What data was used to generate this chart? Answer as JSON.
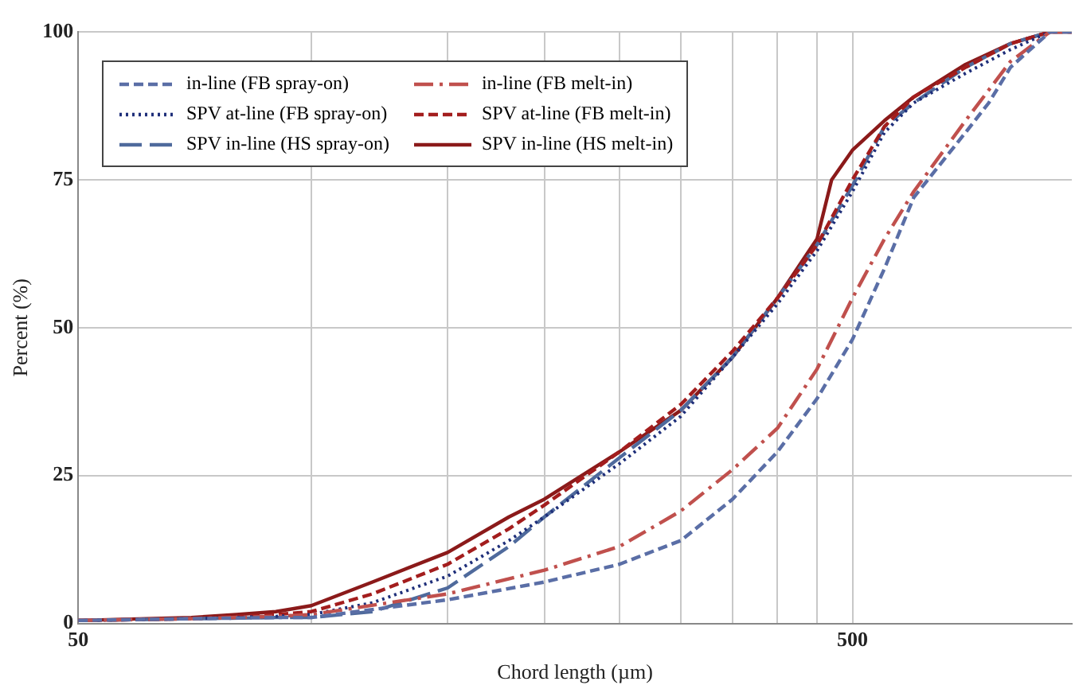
{
  "chart_data": {
    "type": "line",
    "xlabel": "Chord length (µm)",
    "ylabel": "Percent (%)",
    "log": "x",
    "xlim": [
      50,
      960
    ],
    "ylim": [
      0,
      100
    ],
    "xticks": [
      50,
      {
        "value": 100,
        "label": null
      },
      {
        "value": 150,
        "label": null
      },
      {
        "value": 200,
        "label": null
      },
      {
        "value": 250,
        "label": null
      },
      {
        "value": 300,
        "label": null
      },
      {
        "value": 350,
        "label": null
      },
      {
        "value": 400,
        "label": null
      },
      {
        "value": 450,
        "label": null
      },
      500
    ],
    "yticks": [
      0,
      25,
      50,
      75,
      100
    ],
    "grid": true,
    "legend": "top left",
    "marker": "none",
    "series": [
      {
        "name": "in-line (FB spray-on)",
        "color": "#5a6ea6",
        "line_style": "dashed",
        "x": [
          50,
          70,
          90,
          100,
          150,
          200,
          250,
          300,
          350,
          400,
          450,
          500,
          550,
          600,
          700,
          750,
          800,
          900,
          960
        ],
        "values": [
          0.5,
          0.8,
          1,
          1,
          4,
          7,
          10,
          14,
          21,
          29,
          38,
          48,
          60,
          72,
          83,
          88,
          94,
          100,
          100
        ]
      },
      {
        "name": "in-line (FB melt-in)",
        "color": "#c0504d",
        "line_style": "dashdot",
        "x": [
          50,
          70,
          90,
          100,
          150,
          200,
          250,
          300,
          350,
          400,
          450,
          500,
          550,
          600,
          700,
          800,
          900,
          960
        ],
        "values": [
          0.5,
          0.8,
          1.2,
          1.5,
          5,
          9,
          13,
          19,
          26,
          33,
          43,
          55,
          65,
          73,
          85,
          95,
          100,
          100
        ]
      },
      {
        "name": "SPV at-line (FB spray-on)",
        "color": "#1f2f7a",
        "line_style": "dotted",
        "x": [
          50,
          70,
          90,
          100,
          120,
          150,
          180,
          200,
          250,
          300,
          350,
          400,
          450,
          500,
          550,
          600,
          700,
          800,
          900,
          960
        ],
        "values": [
          0.5,
          0.8,
          1.2,
          1.5,
          3.5,
          8,
          14,
          18,
          27,
          35,
          45,
          54,
          63,
          73,
          83,
          88,
          93,
          97,
          100,
          100
        ]
      },
      {
        "name": "SPV at-line (FB melt-in)",
        "color": "#a31d1d",
        "line_style": "dashed",
        "x": [
          50,
          70,
          90,
          100,
          120,
          150,
          180,
          200,
          250,
          300,
          350,
          400,
          450,
          500,
          550,
          600,
          700,
          800,
          900,
          960
        ],
        "values": [
          0.5,
          0.8,
          1.5,
          2,
          5,
          10,
          16,
          20,
          29,
          37,
          46,
          55,
          64,
          75,
          84,
          89,
          94,
          98,
          100,
          100
        ]
      },
      {
        "name": "SPV in-line (HS spray-on)",
        "color": "#4f6a9c",
        "line_style": "longdash",
        "x": [
          50,
          70,
          90,
          100,
          120,
          150,
          180,
          200,
          250,
          300,
          350,
          400,
          450,
          500,
          550,
          600,
          700,
          800,
          900,
          960
        ],
        "values": [
          0.5,
          0.8,
          1,
          1,
          2,
          6,
          13,
          18,
          28,
          36,
          45,
          55,
          64,
          74,
          84,
          88,
          94,
          98,
          100,
          100
        ]
      },
      {
        "name": "SPV in-line (HS melt-in)",
        "color": "#8b1a1a",
        "line_style": "solid",
        "x": [
          50,
          70,
          80,
          90,
          100,
          120,
          150,
          180,
          200,
          250,
          300,
          350,
          400,
          450,
          470,
          500,
          550,
          600,
          700,
          800,
          900,
          960
        ],
        "values": [
          0.5,
          1,
          1.5,
          2,
          3,
          7,
          12,
          18,
          21,
          29,
          36,
          45,
          55,
          65,
          75,
          80,
          85,
          89,
          94.5,
          98,
          100,
          100
        ]
      }
    ]
  }
}
